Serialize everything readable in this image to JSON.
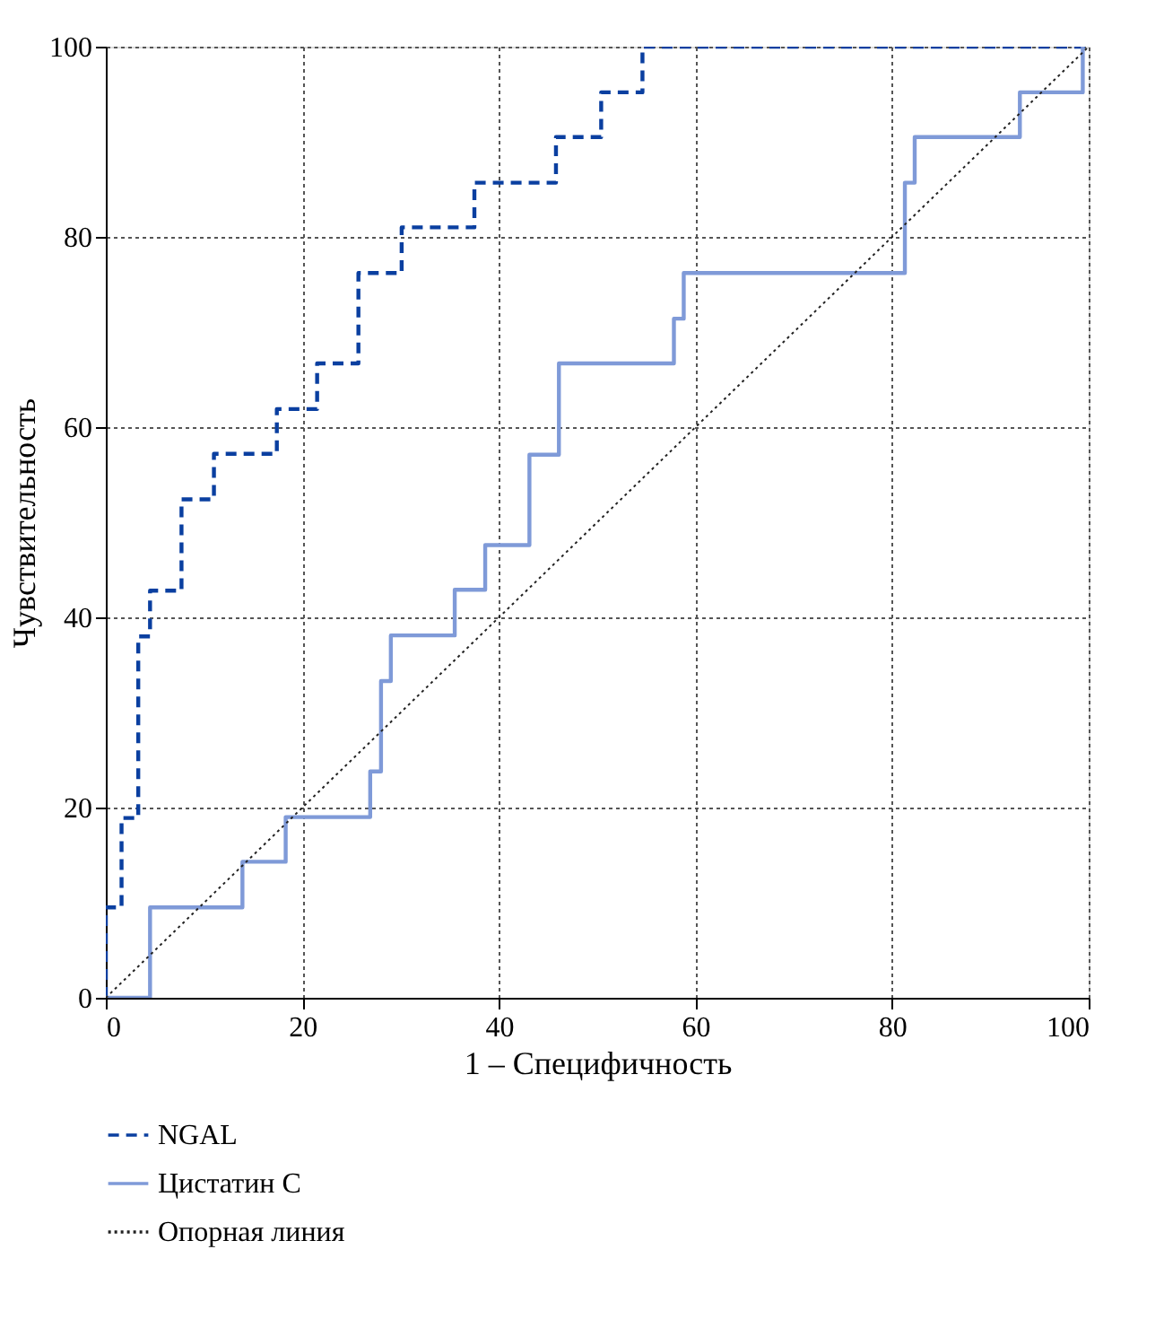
{
  "chart_data": {
    "type": "step",
    "xlabel": "1 – Специфичность",
    "ylabel": "Чувствительность",
    "xlim": [
      0,
      100
    ],
    "ylim": [
      0,
      100
    ],
    "xticks": [
      0,
      20,
      40,
      60,
      80,
      100
    ],
    "yticks": [
      0,
      20,
      40,
      60,
      80,
      100
    ],
    "grid": true,
    "legend": "bottom",
    "series": [
      {
        "name": "NGAL",
        "color": "#0a3fa0",
        "line_style": "dashed",
        "x": [
          0,
          0,
          1.6,
          3.3,
          4.5,
          7.7,
          11,
          17.4,
          21.5,
          25.7,
          30.1,
          37.5,
          45.8,
          50.4,
          54.6,
          100
        ],
        "values": [
          0,
          9.5,
          18.9,
          38,
          42.8,
          52.4,
          57.2,
          61.9,
          66.7,
          76.2,
          81,
          85.7,
          90.5,
          95.2,
          100,
          100
        ]
      },
      {
        "name": "Цистатин С",
        "color": "#7f9ad8",
        "line_style": "solid",
        "x": [
          0,
          4.5,
          13.9,
          18.3,
          26.9,
          28,
          29,
          35.5,
          38.6,
          43.1,
          46.1,
          57.8,
          58.8,
          81.3,
          82.3,
          93,
          99.4
        ],
        "values": [
          0,
          9.5,
          14.3,
          19,
          23.8,
          33.3,
          38.1,
          42.9,
          47.6,
          57.1,
          66.7,
          71.4,
          76.2,
          85.7,
          90.5,
          95.2,
          100
        ]
      },
      {
        "name": "Опорная линия",
        "type": "line",
        "color": "#222222",
        "line_style": "dotted",
        "x": [
          0,
          100
        ],
        "values": [
          0,
          100
        ]
      }
    ]
  }
}
